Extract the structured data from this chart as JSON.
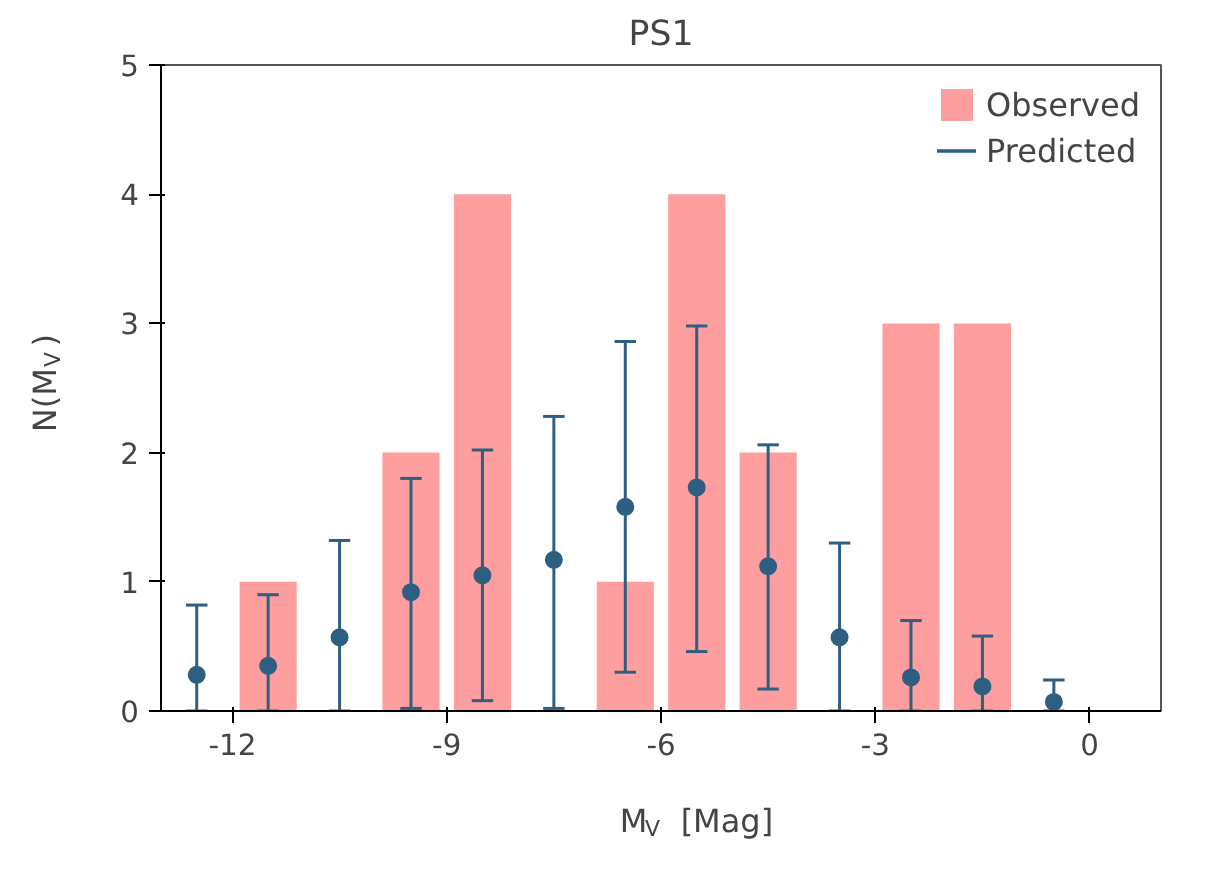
{
  "chart_data": {
    "type": "bar",
    "title": "PS1",
    "xlabel": "M$_{V}$ [Mag]",
    "ylabel": "N(M$_{V}$)",
    "xlim": [
      -13,
      1
    ],
    "ylim": [
      0,
      5
    ],
    "xticks": [
      -12,
      -9,
      -6,
      -3,
      0
    ],
    "yticks": [
      0,
      1,
      2,
      3,
      4,
      5
    ],
    "grid": false,
    "legend": "top right",
    "series": [
      {
        "name": "Observed",
        "color": "#ff9e9e",
        "x": [
          -11.5,
          -9.5,
          -8.5,
          -6.5,
          -5.5,
          -4.5,
          -2.5,
          -1.5
        ],
        "values": [
          1,
          2,
          4,
          1,
          4,
          2,
          3,
          3
        ]
      },
      {
        "name": "Predicted",
        "type": "scatter",
        "marker": "circle",
        "color": "#2e5f82",
        "x": [
          -12.5,
          -11.5,
          -10.5,
          -9.5,
          -8.5,
          -7.5,
          -6.5,
          -5.5,
          -4.5,
          -3.5,
          -2.5,
          -1.5,
          -0.5
        ],
        "values": [
          0.28,
          0.35,
          0.57,
          0.92,
          1.05,
          1.17,
          1.58,
          1.73,
          1.12,
          0.57,
          0.26,
          0.19,
          0.07
        ],
        "errors": [
          [
            0,
            0.82
          ],
          [
            0,
            0.9
          ],
          [
            0,
            1.32
          ],
          [
            0.02,
            1.8
          ],
          [
            0.08,
            2.02
          ],
          [
            0.02,
            2.28
          ],
          [
            0.3,
            2.86
          ],
          [
            0.46,
            2.98
          ],
          [
            0.17,
            2.06
          ],
          [
            0,
            1.3
          ],
          [
            0,
            0.7
          ],
          [
            0,
            0.58
          ],
          [
            0,
            0.24
          ]
        ]
      }
    ]
  }
}
